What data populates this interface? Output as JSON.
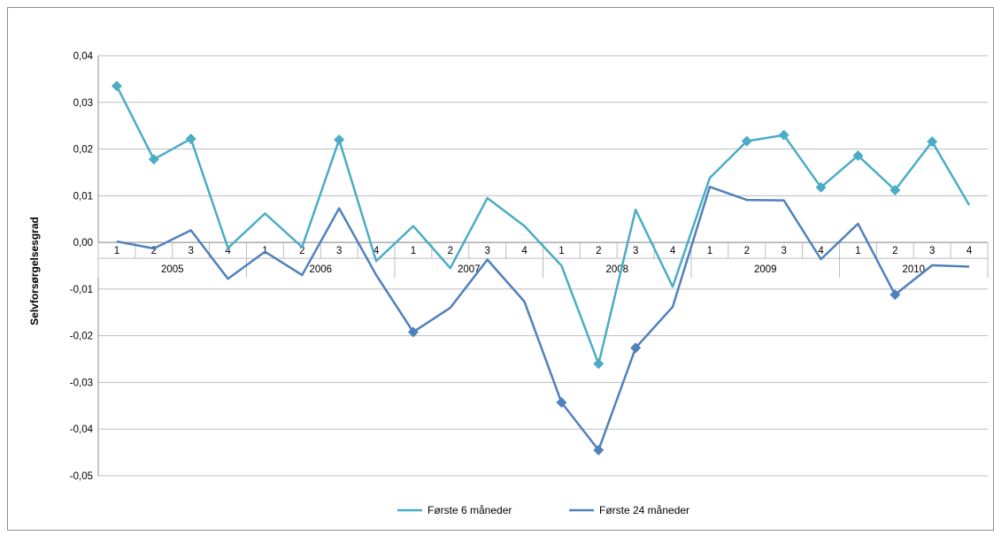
{
  "chart_data": {
    "type": "line",
    "title": "",
    "xlabel": "",
    "ylabel": "Selvforsørgelsesgrad",
    "ylim": [
      -0.05,
      0.04
    ],
    "yticks": [
      "0,04",
      "0,03",
      "0,02",
      "0,01",
      "0,00",
      "-0,01",
      "-0,02",
      "-0,03",
      "-0,04",
      "-0,05"
    ],
    "grid": true,
    "legend_position": "bottom",
    "years": [
      "2005",
      "2006",
      "2007",
      "2008",
      "2009",
      "2010"
    ],
    "quarters": [
      "1",
      "2",
      "3",
      "4"
    ],
    "categories": [
      "2005 Q1",
      "2005 Q2",
      "2005 Q3",
      "2005 Q4",
      "2006 Q1",
      "2006 Q2",
      "2006 Q3",
      "2006 Q4",
      "2007 Q1",
      "2007 Q2",
      "2007 Q3",
      "2007 Q4",
      "2008 Q1",
      "2008 Q2",
      "2008 Q3",
      "2008 Q4",
      "2009 Q1",
      "2009 Q2",
      "2009 Q3",
      "2009 Q4",
      "2010 Q1",
      "2010 Q2",
      "2010 Q3",
      "2010 Q4"
    ],
    "series": [
      {
        "name": "Første 6 måneder",
        "color": "#4bacc6",
        "values": [
          0.0335,
          0.0178,
          0.0222,
          -0.0012,
          0.0062,
          -0.001,
          0.022,
          -0.004,
          0.0035,
          -0.0055,
          0.0095,
          0.0035,
          -0.005,
          -0.026,
          0.007,
          -0.0095,
          0.0138,
          0.0217,
          0.023,
          0.0118,
          0.0186,
          0.0112,
          0.0216,
          0.008
        ],
        "marked": [
          true,
          true,
          true,
          false,
          false,
          false,
          true,
          false,
          false,
          false,
          false,
          false,
          false,
          true,
          false,
          false,
          false,
          true,
          true,
          true,
          true,
          true,
          true,
          false
        ]
      },
      {
        "name": "Første 24 måneder",
        "color": "#4f81bd",
        "values": [
          0.0002,
          -0.0013,
          0.0026,
          -0.0078,
          -0.002,
          -0.007,
          0.0073,
          -0.007,
          -0.0192,
          -0.014,
          -0.0037,
          -0.0127,
          -0.0343,
          -0.0445,
          -0.0226,
          -0.0138,
          0.0119,
          0.0091,
          0.009,
          -0.0036,
          0.004,
          -0.0112,
          -0.0049,
          -0.0052
        ],
        "marked": [
          false,
          false,
          false,
          false,
          false,
          false,
          false,
          false,
          true,
          false,
          false,
          false,
          true,
          true,
          true,
          false,
          false,
          false,
          false,
          false,
          false,
          true,
          false,
          false
        ]
      }
    ]
  }
}
